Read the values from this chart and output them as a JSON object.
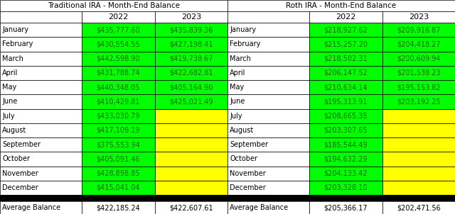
{
  "trad_title": "Traditional IRA - Month-End Balance",
  "roth_title": "Roth IRA - Month-End Balance",
  "months": [
    "January",
    "February",
    "March",
    "April",
    "May",
    "June",
    "July",
    "August",
    "September",
    "October",
    "November",
    "December"
  ],
  "trad_2022": [
    "$435,777.60",
    "$430,554.55",
    "$442,598.90",
    "$431,788.74",
    "$440,348.05",
    "$410,429.81",
    "$433,030.79",
    "$417,109.19",
    "$375,553.94",
    "$405,091.46",
    "$428,898.85",
    "$415,041.04"
  ],
  "trad_2023": [
    "$435,839.36",
    "$427,198.41",
    "$419,738.67",
    "$422,682.81",
    "$405,164.90",
    "$425,021.49",
    "",
    "",
    "",
    "",
    "",
    ""
  ],
  "roth_2022": [
    "$218,927.62",
    "$215,257.20",
    "$218,502.31",
    "$206,147.52",
    "$210,634.14",
    "$195,313.91",
    "$208,665.35",
    "$203,307.65",
    "$185,544.49",
    "$194,632.29",
    "$204,133.42",
    "$203,328.10"
  ],
  "roth_2023": [
    "$209,916.87",
    "$204,418.27",
    "$200,609.94",
    "$201,538.23",
    "$195,153.82",
    "$203,192.25",
    "",
    "",
    "",
    "",
    "",
    ""
  ],
  "trad_avg_2022": "$422,185.24",
  "trad_avg_2023": "$422,607.61",
  "roth_avg_2022": "$205,366.17",
  "roth_avg_2023": "$202,471.56",
  "col_header_2022": "2022",
  "col_header_2023": "2023",
  "avg_label": "Average Balance",
  "green": "#00FF00",
  "yellow": "#FFFF00",
  "black": "#000000",
  "white": "#FFFFFF",
  "border_color": "#000000",
  "text_color_green": "#1a6600",
  "figwidth": 6.4,
  "figheight": 3.02,
  "dpi": 100
}
